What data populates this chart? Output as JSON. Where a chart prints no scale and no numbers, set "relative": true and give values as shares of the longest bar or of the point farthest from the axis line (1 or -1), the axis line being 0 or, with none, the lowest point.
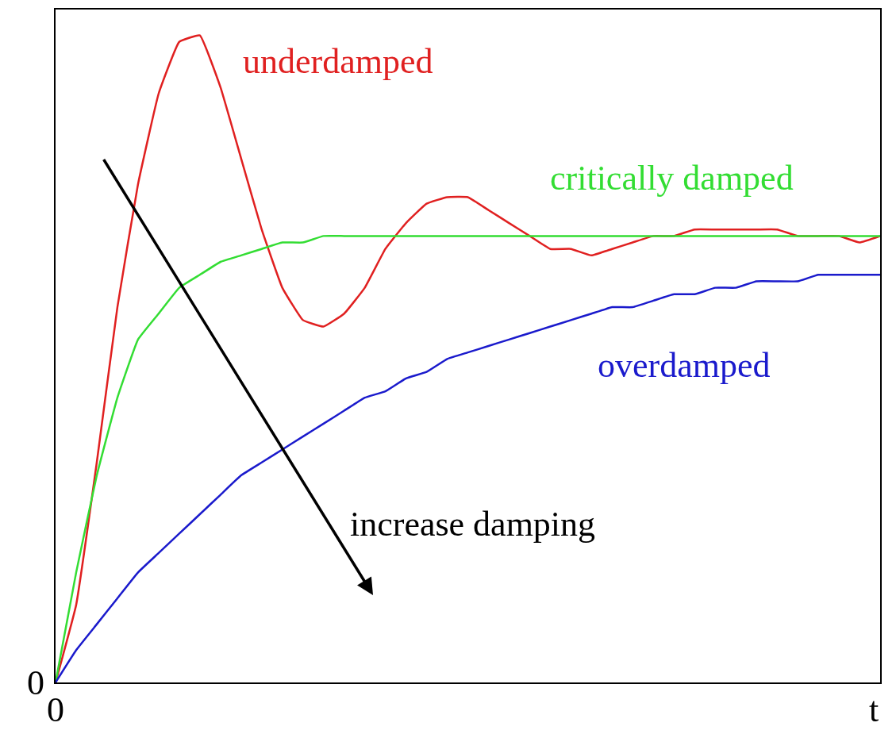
{
  "chart_data": {
    "type": "line",
    "relative": true,
    "xlabel": "t",
    "categories": [
      null,
      null,
      null,
      null,
      null,
      null,
      null,
      null,
      null,
      null,
      null,
      null,
      null,
      null,
      null,
      null,
      null,
      null,
      null,
      null,
      null,
      null,
      null,
      null,
      null,
      null,
      null,
      null,
      null,
      null,
      null,
      null,
      null,
      null,
      null,
      null,
      null,
      null,
      null,
      null,
      null
    ],
    "series": [
      {
        "name": "underdamped",
        "color": "#e02020",
        "values": [
          0,
          0.12,
          0.34,
          0.58,
          0.77,
          0.91,
          0.99,
          1.0,
          0.92,
          0.81,
          0.7,
          0.61,
          0.56,
          0.55,
          0.57,
          0.61,
          0.67,
          0.71,
          0.74,
          0.75,
          0.75,
          0.73,
          0.71,
          0.69,
          0.67,
          0.67,
          0.66,
          0.67,
          0.68,
          0.69,
          0.69,
          0.7,
          0.7,
          0.7,
          0.7,
          0.7,
          0.69,
          0.69,
          0.69,
          0.68,
          0.69
        ]
      },
      {
        "name": "critically damped",
        "color": "#33dd33",
        "values": [
          0,
          0.17,
          0.32,
          0.44,
          0.53,
          0.57,
          0.61,
          0.63,
          0.65,
          0.66,
          0.67,
          0.68,
          0.68,
          0.69,
          0.69,
          0.69,
          0.69,
          0.69,
          0.69,
          0.69,
          0.69,
          0.69,
          0.69,
          0.69,
          0.69,
          0.69,
          0.69,
          0.69,
          0.69,
          0.69,
          0.69,
          0.69,
          0.69,
          0.69,
          0.69,
          0.69,
          0.69,
          0.69,
          0.69,
          0.69,
          0.69
        ]
      },
      {
        "name": "overdamped",
        "color": "#1a1acc",
        "values": [
          0,
          0.05,
          0.09,
          0.13,
          0.17,
          0.2,
          0.23,
          0.26,
          0.29,
          0.32,
          0.34,
          0.36,
          0.38,
          0.4,
          0.42,
          0.44,
          0.45,
          0.47,
          0.48,
          0.5,
          0.51,
          0.52,
          0.53,
          0.54,
          0.55,
          0.56,
          0.57,
          0.58,
          0.58,
          0.59,
          0.6,
          0.6,
          0.61,
          0.61,
          0.62,
          0.62,
          0.62,
          0.63,
          0.63,
          0.63,
          0.63
        ]
      }
    ],
    "annotations": [
      "0",
      "0",
      "increase damping"
    ],
    "legend": false,
    "marker": "none",
    "line_style": "solid"
  }
}
